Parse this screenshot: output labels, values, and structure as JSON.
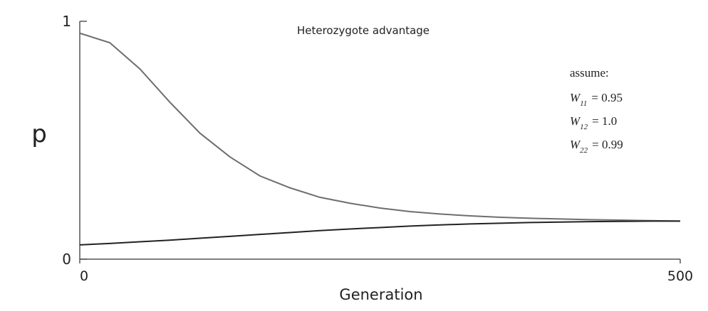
{
  "chart_data": {
    "type": "line",
    "title": "Heterozygote advantage",
    "x_label": "Generation",
    "y_label": "p",
    "x": [
      0,
      25,
      50,
      75,
      100,
      125,
      150,
      175,
      200,
      225,
      250,
      275,
      300,
      325,
      350,
      375,
      400,
      425,
      450,
      475,
      500
    ],
    "series": [
      {
        "color": "#6e6e6e",
        "values": [
          0.95,
          0.91,
          0.8,
          0.66,
          0.53,
          0.43,
          0.35,
          0.3,
          0.26,
          0.235,
          0.215,
          0.2,
          0.19,
          0.182,
          0.176,
          0.172,
          0.169,
          0.166,
          0.164,
          0.162,
          0.16
        ]
      },
      {
        "color": "#222222",
        "values": [
          0.06,
          0.066,
          0.073,
          0.08,
          0.088,
          0.096,
          0.104,
          0.112,
          0.12,
          0.127,
          0.133,
          0.139,
          0.144,
          0.148,
          0.151,
          0.154,
          0.156,
          0.158,
          0.159,
          0.16,
          0.16
        ]
      }
    ],
    "xlim": [
      0,
      500
    ],
    "ylim": [
      0,
      1
    ],
    "xticks": [
      0,
      500
    ],
    "yticks": [
      0,
      1
    ],
    "annotation": {
      "heading": "assume:",
      "lines": [
        {
          "symbol": "W",
          "sub": "11",
          "rest": "= 0.95"
        },
        {
          "symbol": "W",
          "sub": "12",
          "rest": "= 1.0"
        },
        {
          "symbol": "W",
          "sub": "22",
          "rest": "= 0.99"
        }
      ]
    }
  }
}
